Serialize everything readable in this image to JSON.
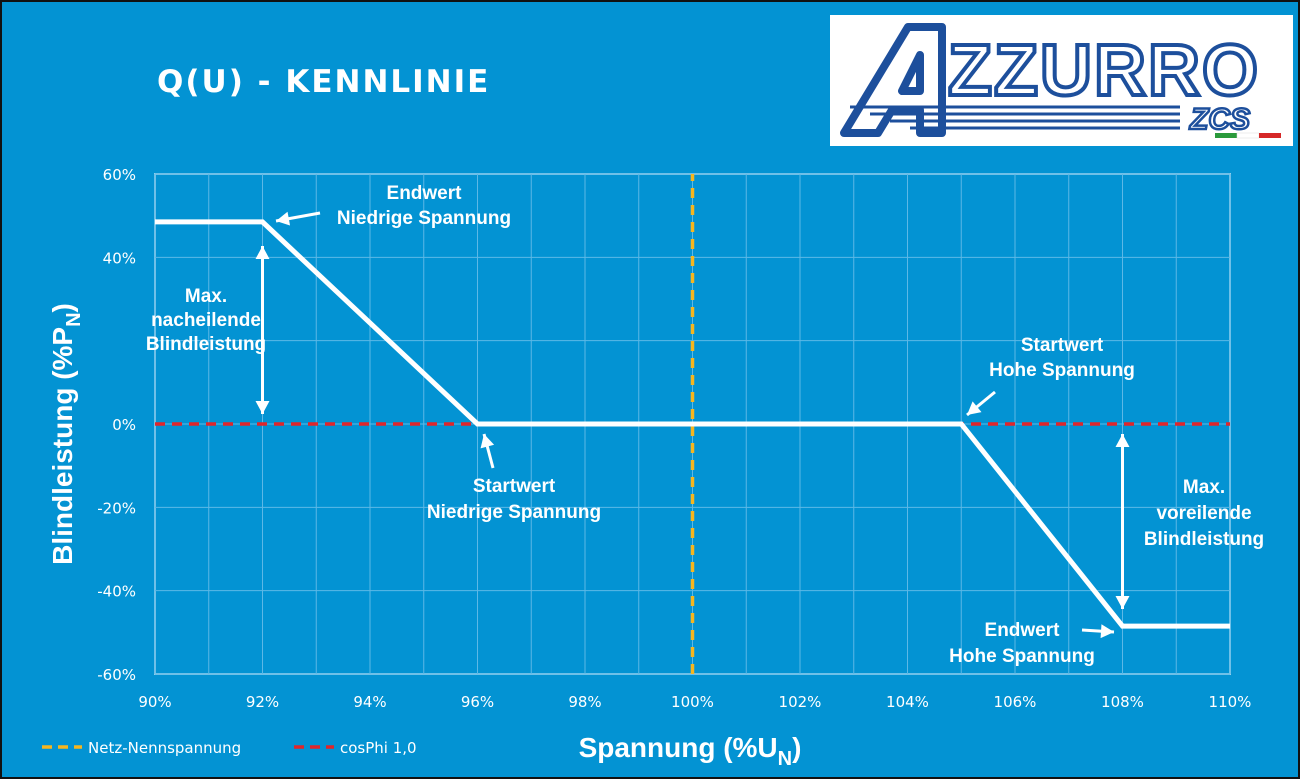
{
  "title": "Q(U) - KENNLINIE",
  "logo": {
    "text": "AZZURRO",
    "subtext": "ZCS",
    "flag_colors": [
      "#2a9a3c",
      "#ffffff",
      "#d62828"
    ],
    "color": "#1d4f9c"
  },
  "colors": {
    "background": "#0393d3",
    "curve": "#ffffff",
    "grid": "#5db8e6",
    "nominal_voltage": "#f6b61e",
    "cosphi": "#e0262b"
  },
  "chart_data": {
    "type": "line",
    "xlabel": "Spannung (%U",
    "xlabel_sub": "N",
    "xlabel_end": ")",
    "ylabel": "Blindleistung (%P",
    "ylabel_sub": "N",
    "ylabel_end": ")",
    "xlim": [
      90,
      110
    ],
    "ylim": [
      -60,
      60
    ],
    "x_ticks": [
      "90%",
      "92%",
      "94%",
      "96%",
      "98%",
      "100%",
      "102%",
      "104%",
      "106%",
      "108%",
      "110%"
    ],
    "y_ticks": [
      "60%",
      "40%",
      "0%",
      "-20%",
      "-40%",
      "-60%"
    ],
    "y_tick_values": [
      60,
      40,
      0,
      -20,
      -40,
      -60
    ],
    "y_grid_values": [
      60,
      40,
      20,
      0,
      -20,
      -40,
      -60
    ],
    "grid": true,
    "series": [
      {
        "x": [
          90,
          92,
          96,
          105,
          108,
          110
        ],
        "y": [
          48.5,
          48.5,
          0,
          0,
          -48.5,
          -48.5
        ]
      },
      {
        "name": "Netz-Nennspannung",
        "x": [
          100,
          100
        ],
        "y": [
          -60,
          60
        ],
        "style": "dashed"
      },
      {
        "name": "cosPhi 1,0",
        "x": [
          90,
          110
        ],
        "y": [
          0,
          0
        ],
        "style": "dashed"
      }
    ],
    "legend_position": "bottom-left",
    "annotations": [
      {
        "lines": [
          "Endwert",
          "Niedrige Spannung"
        ]
      },
      {
        "lines": [
          "Max.",
          "nacheilende",
          "Blindleistung"
        ]
      },
      {
        "lines": [
          "Startwert",
          "Niedrige Spannung"
        ]
      },
      {
        "lines": [
          "Startwert",
          "Hohe Spannung"
        ]
      },
      {
        "lines": [
          "Max.",
          "voreilende",
          "Blindleistung"
        ]
      },
      {
        "lines": [
          "Endwert",
          "Hohe Spannung"
        ]
      }
    ]
  }
}
